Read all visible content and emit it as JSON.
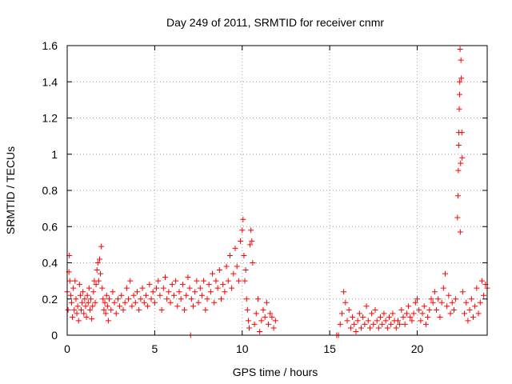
{
  "chart_data": {
    "type": "scatter",
    "title": "Day 249 of 2011, SRMTID for receiver cnmr",
    "xlabel": "GPS time / hours",
    "ylabel": "SRMTID / TECUs",
    "xlim": [
      0,
      24
    ],
    "ylim": [
      0,
      1.6
    ],
    "xticks": [
      0,
      5,
      10,
      15,
      20
    ],
    "xtick_labels": [
      "0",
      "5",
      "10",
      "15",
      "20"
    ],
    "yticks": [
      0,
      0.2,
      0.4,
      0.6,
      0.8,
      1,
      1.2,
      1.4,
      1.6
    ],
    "ytick_labels": [
      "0",
      "0.2",
      "0.4",
      "0.6",
      "0.8",
      "1",
      "1.2",
      "1.4",
      "1.6"
    ],
    "grid": true,
    "marker": "plus",
    "marker_color": "#ff0000",
    "series": [
      {
        "points": [
          [
            0.0,
            0.24
          ],
          [
            0.05,
            0.14
          ],
          [
            0.1,
            0.35
          ],
          [
            0.12,
            0.44
          ],
          [
            0.15,
            0.3
          ],
          [
            0.2,
            0.22
          ],
          [
            0.25,
            0.18
          ],
          [
            0.3,
            0.1
          ],
          [
            0.35,
            0.26
          ],
          [
            0.4,
            0.14
          ],
          [
            0.45,
            0.3
          ],
          [
            0.5,
            0.2
          ],
          [
            0.55,
            0.12
          ],
          [
            0.6,
            0.16
          ],
          [
            0.65,
            0.08
          ],
          [
            0.7,
            0.28
          ],
          [
            0.75,
            0.22
          ],
          [
            0.8,
            0.14
          ],
          [
            0.85,
            0.18
          ],
          [
            0.9,
            0.24
          ],
          [
            0.95,
            0.12
          ],
          [
            1.0,
            0.2
          ],
          [
            1.05,
            0.16
          ],
          [
            1.1,
            0.1
          ],
          [
            1.15,
            0.22
          ],
          [
            1.2,
            0.18
          ],
          [
            1.25,
            0.26
          ],
          [
            1.3,
            0.14
          ],
          [
            1.35,
            0.2
          ],
          [
            1.4,
            0.09
          ],
          [
            1.45,
            0.16
          ],
          [
            1.5,
            0.24
          ],
          [
            1.55,
            0.3
          ],
          [
            1.6,
            0.18
          ],
          [
            1.65,
            0.28
          ],
          [
            1.7,
            0.36
          ],
          [
            1.75,
            0.4
          ],
          [
            1.8,
            0.3
          ],
          [
            1.85,
            0.42
          ],
          [
            1.9,
            0.34
          ],
          [
            1.95,
            0.49
          ],
          [
            2.0,
            0.26
          ],
          [
            2.05,
            0.2
          ],
          [
            2.1,
            0.14
          ],
          [
            2.15,
            0.18
          ],
          [
            2.2,
            0.12
          ],
          [
            2.25,
            0.22
          ],
          [
            2.3,
            0.16
          ],
          [
            2.35,
            0.08
          ],
          [
            2.4,
            0.2
          ],
          [
            2.5,
            0.14
          ],
          [
            2.6,
            0.24
          ],
          [
            2.7,
            0.18
          ],
          [
            2.8,
            0.12
          ],
          [
            2.9,
            0.2
          ],
          [
            3.0,
            0.16
          ],
          [
            3.1,
            0.22
          ],
          [
            3.2,
            0.14
          ],
          [
            3.3,
            0.18
          ],
          [
            3.4,
            0.26
          ],
          [
            3.5,
            0.2
          ],
          [
            3.6,
            0.3
          ],
          [
            3.7,
            0.16
          ],
          [
            3.8,
            0.22
          ],
          [
            3.9,
            0.18
          ],
          [
            4.0,
            0.24
          ],
          [
            4.1,
            0.14
          ],
          [
            4.2,
            0.2
          ],
          [
            4.3,
            0.26
          ],
          [
            4.4,
            0.18
          ],
          [
            4.5,
            0.22
          ],
          [
            4.6,
            0.16
          ],
          [
            4.7,
            0.28
          ],
          [
            4.8,
            0.2
          ],
          [
            4.9,
            0.24
          ],
          [
            5.0,
            0.18
          ],
          [
            5.1,
            0.26
          ],
          [
            5.2,
            0.3
          ],
          [
            5.3,
            0.22
          ],
          [
            5.4,
            0.14
          ],
          [
            5.5,
            0.26
          ],
          [
            5.6,
            0.32
          ],
          [
            5.7,
            0.2
          ],
          [
            5.8,
            0.24
          ],
          [
            5.9,
            0.18
          ],
          [
            6.0,
            0.28
          ],
          [
            6.1,
            0.22
          ],
          [
            6.2,
            0.3
          ],
          [
            6.3,
            0.16
          ],
          [
            6.4,
            0.24
          ],
          [
            6.5,
            0.2
          ],
          [
            6.6,
            0.28
          ],
          [
            6.7,
            0.14
          ],
          [
            6.8,
            0.22
          ],
          [
            6.9,
            0.32
          ],
          [
            7.0,
            0.26
          ],
          [
            7.05,
            0.0
          ],
          [
            7.1,
            0.2
          ],
          [
            7.2,
            0.16
          ],
          [
            7.3,
            0.24
          ],
          [
            7.4,
            0.3
          ],
          [
            7.5,
            0.18
          ],
          [
            7.6,
            0.26
          ],
          [
            7.7,
            0.22
          ],
          [
            7.8,
            0.3
          ],
          [
            7.9,
            0.14
          ],
          [
            8.0,
            0.2
          ],
          [
            8.1,
            0.28
          ],
          [
            8.2,
            0.24
          ],
          [
            8.3,
            0.34
          ],
          [
            8.4,
            0.18
          ],
          [
            8.5,
            0.3
          ],
          [
            8.6,
            0.26
          ],
          [
            8.7,
            0.36
          ],
          [
            8.8,
            0.2
          ],
          [
            8.9,
            0.28
          ],
          [
            9.0,
            0.24
          ],
          [
            9.1,
            0.38
          ],
          [
            9.2,
            0.3
          ],
          [
            9.3,
            0.44
          ],
          [
            9.4,
            0.26
          ],
          [
            9.5,
            0.34
          ],
          [
            9.6,
            0.48
          ],
          [
            9.7,
            0.38
          ],
          [
            9.8,
            0.3
          ],
          [
            9.9,
            0.52
          ],
          [
            10.0,
            0.58
          ],
          [
            10.05,
            0.64
          ],
          [
            10.1,
            0.44
          ],
          [
            10.15,
            0.3
          ],
          [
            10.2,
            0.36
          ],
          [
            10.25,
            0.2
          ],
          [
            10.3,
            0.14
          ],
          [
            10.35,
            0.08
          ],
          [
            10.4,
            0.04
          ],
          [
            10.45,
            0.5
          ],
          [
            10.5,
            0.58
          ],
          [
            10.55,
            0.52
          ],
          [
            10.6,
            0.4
          ],
          [
            10.7,
            0.06
          ],
          [
            10.8,
            0.12
          ],
          [
            10.9,
            0.2
          ],
          [
            11.0,
            0.02
          ],
          [
            11.1,
            0.08
          ],
          [
            11.2,
            0.14
          ],
          [
            11.3,
            0.1
          ],
          [
            11.4,
            0.18
          ],
          [
            11.5,
            0.06
          ],
          [
            11.6,
            0.12
          ],
          [
            11.7,
            0.1
          ],
          [
            11.8,
            0.04
          ],
          [
            11.9,
            0.08
          ],
          [
            15.4,
            0.0
          ],
          [
            15.5,
            0.0
          ],
          [
            15.6,
            0.06
          ],
          [
            15.7,
            0.12
          ],
          [
            15.8,
            0.24
          ],
          [
            15.9,
            0.18
          ],
          [
            16.0,
            0.08
          ],
          [
            16.1,
            0.14
          ],
          [
            16.2,
            0.04
          ],
          [
            16.3,
            0.1
          ],
          [
            16.4,
            0.06
          ],
          [
            16.5,
            0.02
          ],
          [
            16.6,
            0.08
          ],
          [
            16.7,
            0.12
          ],
          [
            16.8,
            0.04
          ],
          [
            16.9,
            0.1
          ],
          [
            17.0,
            0.06
          ],
          [
            17.1,
            0.16
          ],
          [
            17.2,
            0.08
          ],
          [
            17.3,
            0.04
          ],
          [
            17.4,
            0.12
          ],
          [
            17.5,
            0.06
          ],
          [
            17.6,
            0.14
          ],
          [
            17.7,
            0.08
          ],
          [
            17.8,
            0.04
          ],
          [
            17.9,
            0.1
          ],
          [
            18.0,
            0.06
          ],
          [
            18.1,
            0.12
          ],
          [
            18.2,
            0.08
          ],
          [
            18.3,
            0.04
          ],
          [
            18.4,
            0.1
          ],
          [
            18.5,
            0.06
          ],
          [
            18.6,
            0.12
          ],
          [
            18.7,
            0.08
          ],
          [
            18.8,
            0.04
          ],
          [
            18.9,
            0.08
          ],
          [
            19.0,
            0.06
          ],
          [
            19.1,
            0.14
          ],
          [
            19.2,
            0.1
          ],
          [
            19.3,
            0.06
          ],
          [
            19.4,
            0.12
          ],
          [
            19.5,
            0.16
          ],
          [
            19.6,
            0.1
          ],
          [
            19.7,
            0.08
          ],
          [
            19.8,
            0.12
          ],
          [
            19.9,
            0.18
          ],
          [
            20.0,
            0.2
          ],
          [
            20.1,
            0.14
          ],
          [
            20.2,
            0.08
          ],
          [
            20.3,
            0.12
          ],
          [
            20.4,
            0.16
          ],
          [
            20.5,
            0.06
          ],
          [
            20.6,
            0.1
          ],
          [
            20.7,
            0.14
          ],
          [
            20.8,
            0.2
          ],
          [
            20.9,
            0.18
          ],
          [
            21.0,
            0.24
          ],
          [
            21.1,
            0.14
          ],
          [
            21.2,
            0.2
          ],
          [
            21.3,
            0.1
          ],
          [
            21.4,
            0.18
          ],
          [
            21.5,
            0.26
          ],
          [
            21.6,
            0.34
          ],
          [
            21.7,
            0.16
          ],
          [
            21.8,
            0.22
          ],
          [
            21.9,
            0.12
          ],
          [
            22.0,
            0.18
          ],
          [
            22.1,
            0.14
          ],
          [
            22.2,
            0.2
          ],
          [
            22.3,
            0.65
          ],
          [
            22.33,
            0.77
          ],
          [
            22.35,
            0.91
          ],
          [
            22.37,
            1.05
          ],
          [
            22.38,
            1.12
          ],
          [
            22.4,
            1.25
          ],
          [
            22.42,
            1.33
          ],
          [
            22.43,
            1.4
          ],
          [
            22.45,
            1.58
          ],
          [
            22.46,
            0.57
          ],
          [
            22.48,
            0.95
          ],
          [
            22.5,
            1.52
          ],
          [
            22.52,
            1.42
          ],
          [
            22.55,
            1.12
          ],
          [
            22.57,
            0.98
          ],
          [
            22.6,
            0.24
          ],
          [
            22.7,
            0.12
          ],
          [
            22.8,
            0.18
          ],
          [
            22.9,
            0.08
          ],
          [
            23.0,
            0.14
          ],
          [
            23.1,
            0.2
          ],
          [
            23.2,
            0.1
          ],
          [
            23.3,
            0.16
          ],
          [
            23.4,
            0.26
          ],
          [
            23.5,
            0.12
          ],
          [
            23.6,
            0.18
          ],
          [
            23.7,
            0.3
          ],
          [
            23.8,
            0.22
          ],
          [
            23.9,
            0.28
          ],
          [
            24.0,
            0.26
          ]
        ]
      }
    ]
  }
}
